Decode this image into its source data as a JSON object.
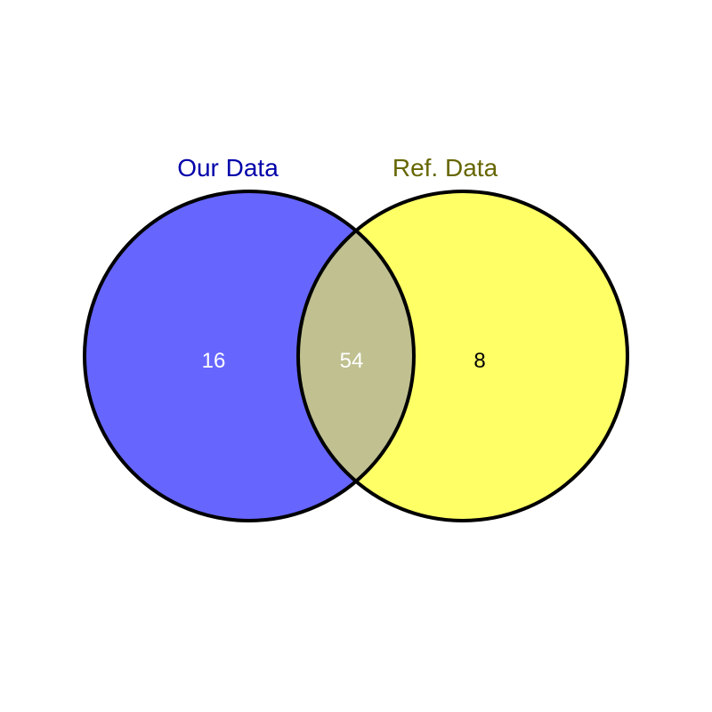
{
  "venn": {
    "sets": [
      {
        "name": "Our Data",
        "fill_color": "#6666ff",
        "label_color": "#0000aa"
      },
      {
        "name": "Ref. Data",
        "fill_color": "#ffff66",
        "label_color": "#666600"
      }
    ],
    "intersection_color": "#c0c090",
    "outline_color": "#000000",
    "regions": {
      "left_only": {
        "count": "16",
        "text_color": "#ffffff"
      },
      "both": {
        "count": "54",
        "text_color": "#ffffff"
      },
      "right_only": {
        "count": "8",
        "text_color": "#000000"
      }
    }
  }
}
